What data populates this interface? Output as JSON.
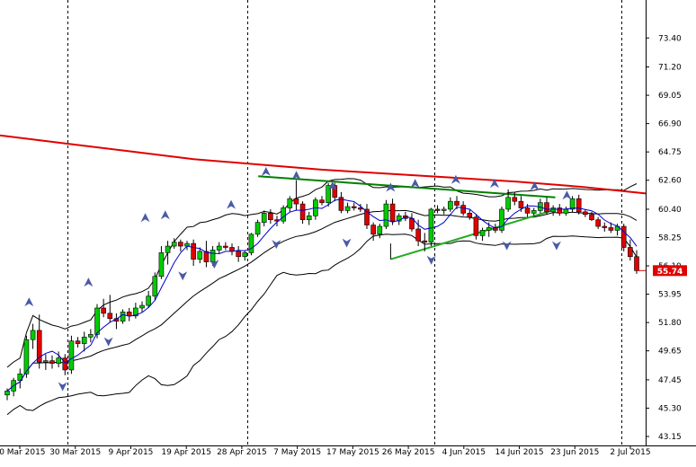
{
  "chart_data": {
    "type": "candlestick",
    "title": "",
    "xlabel": "",
    "ylabel": "",
    "ylim": [
      43.15,
      75.6
    ],
    "y_ticks": [
      "73.40",
      "71.20",
      "69.05",
      "66.90",
      "64.75",
      "62.60",
      "60.40",
      "58.25",
      "56.10",
      "53.95",
      "51.80",
      "49.65",
      "47.45",
      "45.30",
      "43.15"
    ],
    "x_ticks": [
      "20 Mar 2015",
      "30 Mar 2015",
      "9 Apr 2015",
      "19 Apr 2015",
      "28 Apr 2015",
      "7 May 2015",
      "17 May 2015",
      "26 May 2015",
      "4 Jun 2015",
      "14 Jun 2015",
      "23 Jun 2015",
      "2 Jul 2015"
    ],
    "current_price": "55.74",
    "grid": false,
    "colors": {
      "up_candle": "#00cc00",
      "down_candle": "#e00000",
      "moving_average_long": "#e00000",
      "bollinger_bands": "#000000",
      "moving_average_short": "#0000cc",
      "resistance_line": "#008000",
      "support_line": "#22aa22",
      "price_label_bg": "#e00000",
      "fractal_markers": "#4a5aa8"
    },
    "candles": [
      [
        46.3,
        46.8,
        45.9,
        46.6
      ],
      [
        46.6,
        47.6,
        46.2,
        47.4
      ],
      [
        47.4,
        48.3,
        46.8,
        47.9
      ],
      [
        47.9,
        50.8,
        47.6,
        50.5
      ],
      [
        50.5,
        51.7,
        49.8,
        51.2
      ],
      [
        51.2,
        52.4,
        48.3,
        48.8
      ],
      [
        48.8,
        49.4,
        48.2,
        48.9
      ],
      [
        48.9,
        49.3,
        48.3,
        48.7
      ],
      [
        48.7,
        49.6,
        48.4,
        49.1
      ],
      [
        49.1,
        49.4,
        47.8,
        48.2
      ],
      [
        48.2,
        50.8,
        47.9,
        50.4
      ],
      [
        50.4,
        50.7,
        49.9,
        50.2
      ],
      [
        50.2,
        51.1,
        49.6,
        50.7
      ],
      [
        50.7,
        51.3,
        50.3,
        50.9
      ],
      [
        50.9,
        53.2,
        50.6,
        52.9
      ],
      [
        52.9,
        53.6,
        52.2,
        52.5
      ],
      [
        52.5,
        53.9,
        51.8,
        52.1
      ],
      [
        52.1,
        52.5,
        51.3,
        51.9
      ],
      [
        51.9,
        52.8,
        51.7,
        52.6
      ],
      [
        52.6,
        52.9,
        51.9,
        52.3
      ],
      [
        52.3,
        53.3,
        52.1,
        52.9
      ],
      [
        52.9,
        53.4,
        52.6,
        53.1
      ],
      [
        53.1,
        54.2,
        52.9,
        53.8
      ],
      [
        53.8,
        55.6,
        53.5,
        55.3
      ],
      [
        55.3,
        57.6,
        55.1,
        57.1
      ],
      [
        57.1,
        58.0,
        56.2,
        57.6
      ],
      [
        57.6,
        58.2,
        57.4,
        57.9
      ],
      [
        57.9,
        58.1,
        57.2,
        57.6
      ],
      [
        57.6,
        58.0,
        57.3,
        57.8
      ],
      [
        57.8,
        58.1,
        56.1,
        56.6
      ],
      [
        56.6,
        57.5,
        56.3,
        57.2
      ],
      [
        57.2,
        58.0,
        56.0,
        56.4
      ],
      [
        56.4,
        57.6,
        56.1,
        57.3
      ],
      [
        57.3,
        57.9,
        57.0,
        57.6
      ],
      [
        57.6,
        57.9,
        57.3,
        57.5
      ],
      [
        57.5,
        57.8,
        56.9,
        57.2
      ],
      [
        57.2,
        57.6,
        56.4,
        56.8
      ],
      [
        56.8,
        57.3,
        56.5,
        57.1
      ],
      [
        57.1,
        58.6,
        56.9,
        58.5
      ],
      [
        58.5,
        59.6,
        58.3,
        59.4
      ],
      [
        59.4,
        60.3,
        59.1,
        60.1
      ],
      [
        60.1,
        60.4,
        59.3,
        59.6
      ],
      [
        59.6,
        59.9,
        59.1,
        59.5
      ],
      [
        59.5,
        60.7,
        59.3,
        60.5
      ],
      [
        60.5,
        61.4,
        60.2,
        61.2
      ],
      [
        61.2,
        62.6,
        60.3,
        60.8
      ],
      [
        60.8,
        61.0,
        59.3,
        59.6
      ],
      [
        59.6,
        60.2,
        59.2,
        59.9
      ],
      [
        59.9,
        61.3,
        59.6,
        61.1
      ],
      [
        61.1,
        61.4,
        60.7,
        60.9
      ],
      [
        60.9,
        62.4,
        60.6,
        62.2
      ],
      [
        62.2,
        62.4,
        61.0,
        61.3
      ],
      [
        61.3,
        61.7,
        60.1,
        60.3
      ],
      [
        60.3,
        60.9,
        60.1,
        60.6
      ],
      [
        60.6,
        60.9,
        60.3,
        60.5
      ],
      [
        60.5,
        60.8,
        60.2,
        60.4
      ],
      [
        60.4,
        60.8,
        58.9,
        59.2
      ],
      [
        59.2,
        59.4,
        58.0,
        58.5
      ],
      [
        58.5,
        59.3,
        58.2,
        59.1
      ],
      [
        59.1,
        61.1,
        58.9,
        60.8
      ],
      [
        60.8,
        61.2,
        59.2,
        59.5
      ],
      [
        59.5,
        60.1,
        59.2,
        59.9
      ],
      [
        59.9,
        60.2,
        59.5,
        59.7
      ],
      [
        59.7,
        60.1,
        58.7,
        58.9
      ],
      [
        58.9,
        59.6,
        57.6,
        58.0
      ],
      [
        58.0,
        58.6,
        57.2,
        57.9
      ],
      [
        57.9,
        60.5,
        57.6,
        60.4
      ],
      [
        60.4,
        60.7,
        60.1,
        60.3
      ],
      [
        60.3,
        60.6,
        60.0,
        60.4
      ],
      [
        60.4,
        61.3,
        60.2,
        61.0
      ],
      [
        61.0,
        61.4,
        60.4,
        60.7
      ],
      [
        60.7,
        61.0,
        59.9,
        60.1
      ],
      [
        60.1,
        60.4,
        59.6,
        59.8
      ],
      [
        59.8,
        60.0,
        58.1,
        58.4
      ],
      [
        58.4,
        59.0,
        58.0,
        58.8
      ],
      [
        58.8,
        59.4,
        58.3,
        59.0
      ],
      [
        59.0,
        59.3,
        58.6,
        58.8
      ],
      [
        58.8,
        60.6,
        58.6,
        60.4
      ],
      [
        60.4,
        61.9,
        60.2,
        61.3
      ],
      [
        61.3,
        61.7,
        60.7,
        61.0
      ],
      [
        61.0,
        61.4,
        60.2,
        60.5
      ],
      [
        60.5,
        60.8,
        59.8,
        60.1
      ],
      [
        60.1,
        60.5,
        59.9,
        60.3
      ],
      [
        60.3,
        61.2,
        60.1,
        60.9
      ],
      [
        60.9,
        61.3,
        60.0,
        60.2
      ],
      [
        60.2,
        60.7,
        59.9,
        60.5
      ],
      [
        60.5,
        60.8,
        59.9,
        60.1
      ],
      [
        60.1,
        60.6,
        59.9,
        60.4
      ],
      [
        60.4,
        61.4,
        60.2,
        61.2
      ],
      [
        61.2,
        61.5,
        60.0,
        60.2
      ],
      [
        60.2,
        60.4,
        59.8,
        60.0
      ],
      [
        60.0,
        60.2,
        59.5,
        59.6
      ],
      [
        59.6,
        59.8,
        58.9,
        59.1
      ],
      [
        59.1,
        59.4,
        58.7,
        59.0
      ],
      [
        59.0,
        59.4,
        58.6,
        58.8
      ],
      [
        58.8,
        59.3,
        58.4,
        59.1
      ],
      [
        59.1,
        59.3,
        57.2,
        57.5
      ],
      [
        57.5,
        58.1,
        56.5,
        56.8
      ],
      [
        56.8,
        57.3,
        55.5,
        55.74
      ]
    ],
    "ma_long": [
      [
        0,
        66.0
      ],
      [
        0.1,
        65.4
      ],
      [
        0.2,
        64.8
      ],
      [
        0.3,
        64.2
      ],
      [
        0.4,
        63.8
      ],
      [
        0.5,
        63.4
      ],
      [
        0.6,
        63.1
      ],
      [
        0.7,
        62.8
      ],
      [
        0.8,
        62.5
      ],
      [
        0.9,
        62.1
      ],
      [
        1.0,
        61.6
      ]
    ],
    "resistance_line": [
      [
        0.4,
        62.9
      ],
      [
        0.86,
        61.3
      ]
    ],
    "support_line": [
      [
        0.605,
        56.6
      ],
      [
        0.855,
        60.3
      ]
    ],
    "support_line_stub": [
      [
        0.605,
        56.6
      ],
      [
        0.605,
        57.8
      ]
    ],
    "fractals_up": [
      [
        0.045,
        53.3
      ],
      [
        0.137,
        54.8
      ],
      [
        0.225,
        59.7
      ],
      [
        0.256,
        59.9
      ],
      [
        0.358,
        60.7
      ],
      [
        0.412,
        63.2
      ],
      [
        0.459,
        62.9
      ],
      [
        0.515,
        62.1
      ],
      [
        0.605,
        62.0
      ],
      [
        0.643,
        62.3
      ],
      [
        0.706,
        62.6
      ],
      [
        0.766,
        62.3
      ],
      [
        0.828,
        62.1
      ],
      [
        0.878,
        61.4
      ]
    ],
    "fractals_down": [
      [
        0.097,
        47.0
      ],
      [
        0.168,
        50.4
      ],
      [
        0.283,
        55.4
      ],
      [
        0.332,
        56.3
      ],
      [
        0.428,
        57.8
      ],
      [
        0.537,
        57.9
      ],
      [
        0.668,
        56.6
      ],
      [
        0.785,
        57.7
      ],
      [
        0.862,
        57.7
      ]
    ]
  }
}
